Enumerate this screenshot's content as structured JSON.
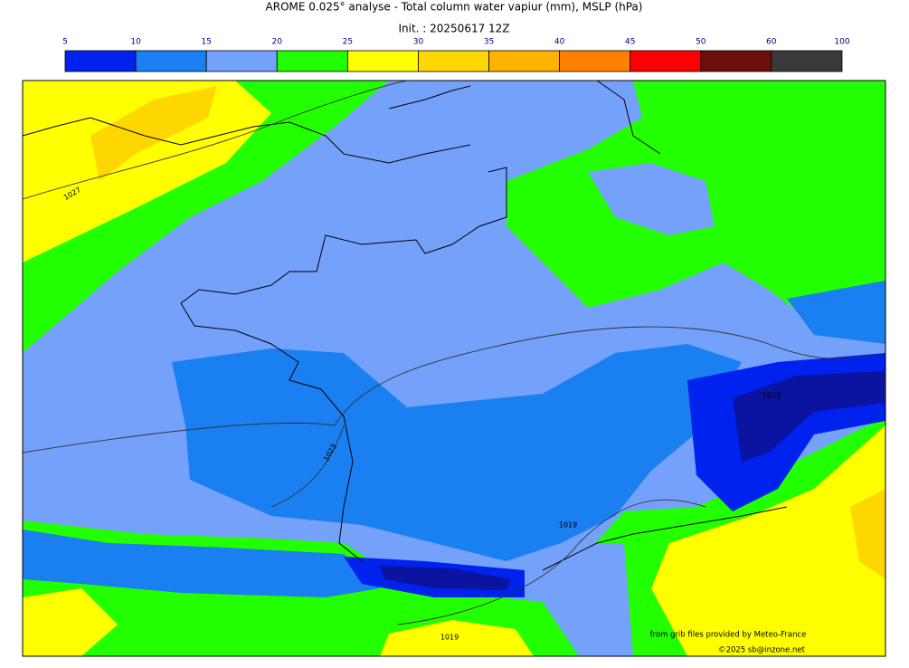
{
  "title": "AROME 0.025° analyse - Total column water vapiur (mm), MSLP (hPa)",
  "init": "Init. : 20250617 12Z",
  "colorbar": {
    "ticks": [
      5,
      10,
      15,
      20,
      25,
      30,
      35,
      40,
      45,
      50,
      60,
      100
    ],
    "colors": [
      "#0022ee",
      "#1a7ff0",
      "#74a1fa",
      "#22ff00",
      "#ffff00",
      "#ffd700",
      "#ffb300",
      "#ff8000",
      "#ff0000",
      "#6b0f0a",
      "#3a3a3a"
    ]
  },
  "isobar_labels": [
    1027,
    1023,
    1023,
    1019,
    1019
  ],
  "credits": [
    "from grib files provided by Meteo-France",
    "©2025 sb@inzone.net"
  ]
}
